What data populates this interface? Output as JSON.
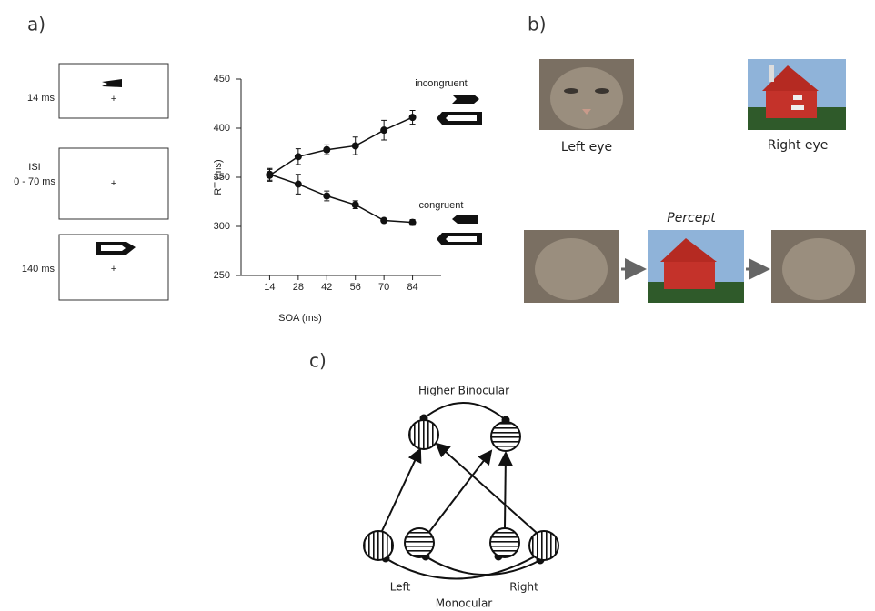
{
  "panels": {
    "a": {
      "label": "a)",
      "frames": [
        {
          "label": "14 ms"
        },
        {
          "label": "ISI",
          "sublabel": "0 - 70 ms"
        },
        {
          "label": "140 ms"
        }
      ]
    },
    "b": {
      "label": "b)",
      "left_caption": "Left eye",
      "right_caption": "Right eye",
      "percept": "Percept"
    },
    "c": {
      "label": "c)",
      "top": "Higher Binocular",
      "left": "Left",
      "right": "Right",
      "bottom": "Monocular"
    }
  },
  "chart_data": {
    "type": "line",
    "x_label": "SOA (ms)",
    "y_label": "RT (ms)",
    "x": [
      14,
      28,
      42,
      56,
      70,
      84
    ],
    "series": [
      {
        "name": "incongruent",
        "color": "#111111",
        "values": [
          352,
          371,
          378,
          382,
          398,
          411
        ],
        "errors": [
          6,
          8,
          5,
          9,
          10,
          7
        ]
      },
      {
        "name": "congruent",
        "color": "#111111",
        "values": [
          353,
          343,
          331,
          322,
          306,
          304
        ],
        "errors": [
          6,
          10,
          5,
          4,
          2,
          3
        ]
      }
    ],
    "xlim": [
      0,
      98
    ],
    "xticks": [
      14,
      28,
      42,
      56,
      70,
      84
    ],
    "ylim": [
      250,
      450
    ],
    "yticks": [
      250,
      300,
      350,
      400,
      450
    ]
  }
}
